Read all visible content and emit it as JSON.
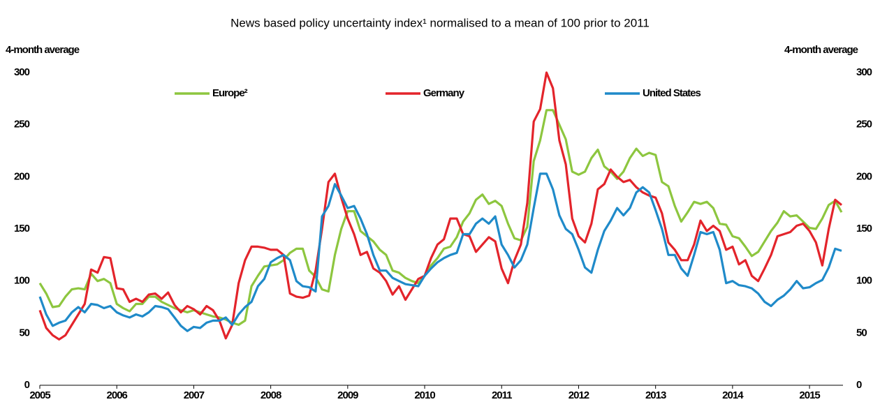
{
  "chart_data": {
    "type": "line",
    "title": "News based policy uncertainty index¹ normalised to a mean of 100 prior to 2011",
    "y_label": "4-month average",
    "y2_label": "4-month average",
    "categories": [
      "2005",
      null,
      null,
      null,
      null,
      null,
      null,
      null,
      null,
      null,
      null,
      null,
      "2006",
      null,
      null,
      null,
      null,
      null,
      null,
      null,
      null,
      null,
      null,
      null,
      "2007",
      null,
      null,
      null,
      null,
      null,
      null,
      null,
      null,
      null,
      null,
      null,
      "2008",
      null,
      null,
      null,
      null,
      null,
      null,
      null,
      null,
      null,
      null,
      null,
      "2009",
      null,
      null,
      null,
      null,
      null,
      null,
      null,
      null,
      null,
      null,
      null,
      "2010",
      null,
      null,
      null,
      null,
      null,
      null,
      null,
      null,
      null,
      null,
      null,
      "2011",
      null,
      null,
      null,
      null,
      null,
      null,
      null,
      null,
      null,
      null,
      null,
      "2012",
      null,
      null,
      null,
      null,
      null,
      null,
      null,
      null,
      null,
      null,
      null,
      "2013",
      null,
      null,
      null,
      null,
      null,
      null,
      null,
      null,
      null,
      null,
      null,
      "2014",
      null,
      null,
      null,
      null,
      null,
      null,
      null,
      null,
      null,
      null,
      null,
      "2015",
      null,
      null,
      null,
      null,
      null
    ],
    "series": [
      {
        "name": "Europe²",
        "color": "#8dc63f",
        "values": [
          98,
          88,
          75,
          76,
          85,
          92,
          93,
          92,
          107,
          100,
          102,
          98,
          78,
          74,
          71,
          78,
          78,
          85,
          85,
          80,
          77,
          74,
          72,
          70,
          72,
          70,
          68,
          66,
          65,
          63,
          60,
          58,
          62,
          95,
          105,
          114,
          115,
          116,
          120,
          127,
          131,
          131,
          110,
          104,
          92,
          90,
          125,
          150,
          167,
          167,
          148,
          143,
          138,
          130,
          125,
          110,
          108,
          103,
          100,
          98,
          105,
          115,
          122,
          131,
          133,
          142,
          157,
          165,
          178,
          183,
          174,
          177,
          172,
          155,
          141,
          139,
          152,
          215,
          235,
          264,
          264,
          250,
          236,
          205,
          202,
          205,
          218,
          226,
          210,
          205,
          198,
          205,
          218,
          227,
          220,
          223,
          221,
          195,
          191,
          172,
          157,
          166,
          176,
          174,
          176,
          170,
          155,
          154,
          143,
          141,
          133,
          124,
          128,
          138,
          148,
          156,
          167,
          162,
          163,
          157,
          151,
          150,
          160,
          173,
          177,
          166
        ]
      },
      {
        "name": "Germany",
        "color": "#e3242b",
        "values": [
          72,
          55,
          48,
          44,
          48,
          58,
          68,
          78,
          111,
          108,
          123,
          122,
          93,
          92,
          80,
          83,
          80,
          87,
          88,
          83,
          89,
          77,
          70,
          76,
          73,
          68,
          76,
          72,
          62,
          45,
          58,
          98,
          120,
          133,
          133,
          132,
          130,
          130,
          125,
          88,
          85,
          84,
          86,
          110,
          150,
          195,
          203,
          180,
          160,
          145,
          125,
          128,
          112,
          108,
          100,
          87,
          95,
          82,
          92,
          102,
          105,
          122,
          135,
          140,
          160,
          160,
          145,
          143,
          128,
          135,
          142,
          138,
          112,
          98,
          120,
          135,
          175,
          253,
          265,
          300,
          285,
          235,
          212,
          160,
          143,
          137,
          155,
          188,
          193,
          207,
          200,
          195,
          197,
          190,
          185,
          182,
          180,
          165,
          137,
          130,
          120,
          120,
          135,
          158,
          148,
          153,
          148,
          130,
          133,
          116,
          120,
          105,
          100,
          112,
          125,
          143,
          145,
          147,
          153,
          155,
          148,
          137,
          115,
          150,
          178,
          173
        ]
      },
      {
        "name": "United States",
        "color": "#1f8ac9",
        "values": [
          85,
          68,
          57,
          60,
          62,
          70,
          75,
          70,
          78,
          77,
          74,
          76,
          70,
          67,
          65,
          68,
          66,
          70,
          76,
          75,
          73,
          65,
          57,
          52,
          56,
          55,
          60,
          62,
          62,
          65,
          58,
          68,
          75,
          80,
          95,
          102,
          118,
          122,
          125,
          120,
          100,
          95,
          94,
          90,
          162,
          172,
          193,
          182,
          170,
          172,
          160,
          145,
          125,
          110,
          110,
          103,
          100,
          97,
          96,
          95,
          105,
          112,
          118,
          122,
          125,
          127,
          145,
          145,
          155,
          160,
          155,
          162,
          135,
          125,
          113,
          120,
          135,
          170,
          203,
          203,
          188,
          163,
          150,
          145,
          130,
          113,
          108,
          130,
          148,
          158,
          170,
          163,
          170,
          185,
          190,
          185,
          168,
          150,
          125,
          125,
          112,
          105,
          125,
          147,
          145,
          147,
          130,
          98,
          100,
          96,
          95,
          93,
          88,
          80,
          76,
          82,
          86,
          92,
          100,
          93,
          94,
          98,
          101,
          113,
          131,
          129
        ]
      }
    ],
    "ylim": [
      0,
      300
    ],
    "yticks": [
      0,
      50,
      100,
      150,
      200,
      250,
      300
    ],
    "y2lim": [
      0,
      300
    ],
    "y2ticks": [
      0,
      50,
      100,
      150,
      200,
      250,
      300
    ],
    "grid": false
  }
}
